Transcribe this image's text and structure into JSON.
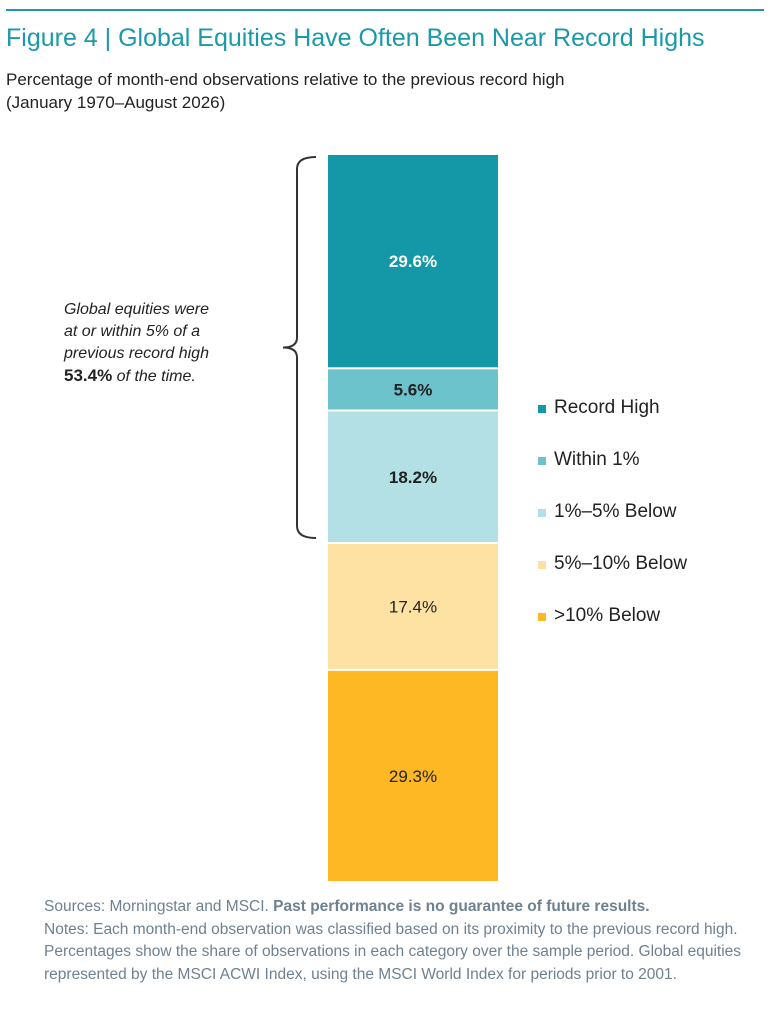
{
  "colors": {
    "title": "#1a9aa8",
    "rule": "#1a9aa8",
    "bracket": "#333333",
    "segments": [
      "#1497a6",
      "#6cc3cc",
      "#b3e0e4",
      "#fde2a4",
      "#fdb824"
    ]
  },
  "header": {
    "title": "Figure 4 | Global Equities Have Often Been Near Record Highs",
    "subtitle_line1": "Percentage of month-end observations relative to the previous record high",
    "subtitle_line2": "(January 1970–August 2026)"
  },
  "annotation": {
    "line1": "Global equities were",
    "line2": "at or within 5% of a",
    "line3": "previous record high",
    "value": "53.4%",
    "suffix": " of the time."
  },
  "chart_data": {
    "type": "bar",
    "stacked": true,
    "categories": [
      ""
    ],
    "series": [
      {
        "name": "Record High",
        "values": [
          29.6
        ],
        "label": "29.6%",
        "color": "#1497a6",
        "label_color": "#ffffff",
        "label_bold": true
      },
      {
        "name": "Within 1%",
        "values": [
          5.6
        ],
        "label": "5.6%",
        "color": "#6cc3cc",
        "label_color": "#222222",
        "label_bold": true
      },
      {
        "name": "1%–5% Below",
        "values": [
          18.2
        ],
        "label": "18.2%",
        "color": "#b3e0e4",
        "label_color": "#222222",
        "label_bold": true
      },
      {
        "name": "5%–10% Below",
        "values": [
          17.4
        ],
        "label": "17.4%",
        "color": "#fde2a4",
        "label_color": "#222222",
        "label_bold": false
      },
      {
        "name": ">10% Below",
        "values": [
          29.3
        ],
        "label": "29.3%",
        "color": "#fdb824",
        "label_color": "#222222",
        "label_bold": false
      }
    ],
    "ylim": [
      0,
      100
    ],
    "legend": "right",
    "grid": false
  },
  "footer": {
    "sources_prefix": "Sources: Morningstar and MSCI. ",
    "sources_bold": "Past performance is no guarantee of future results.",
    "notes": "Notes: Each month-end observation was classified based on its proximity to the previous record high. Percentages show the share of observations in each category over the sample period. Global equities represented by the MSCI ACWI Index, using the MSCI World Index for periods prior to 2001."
  }
}
